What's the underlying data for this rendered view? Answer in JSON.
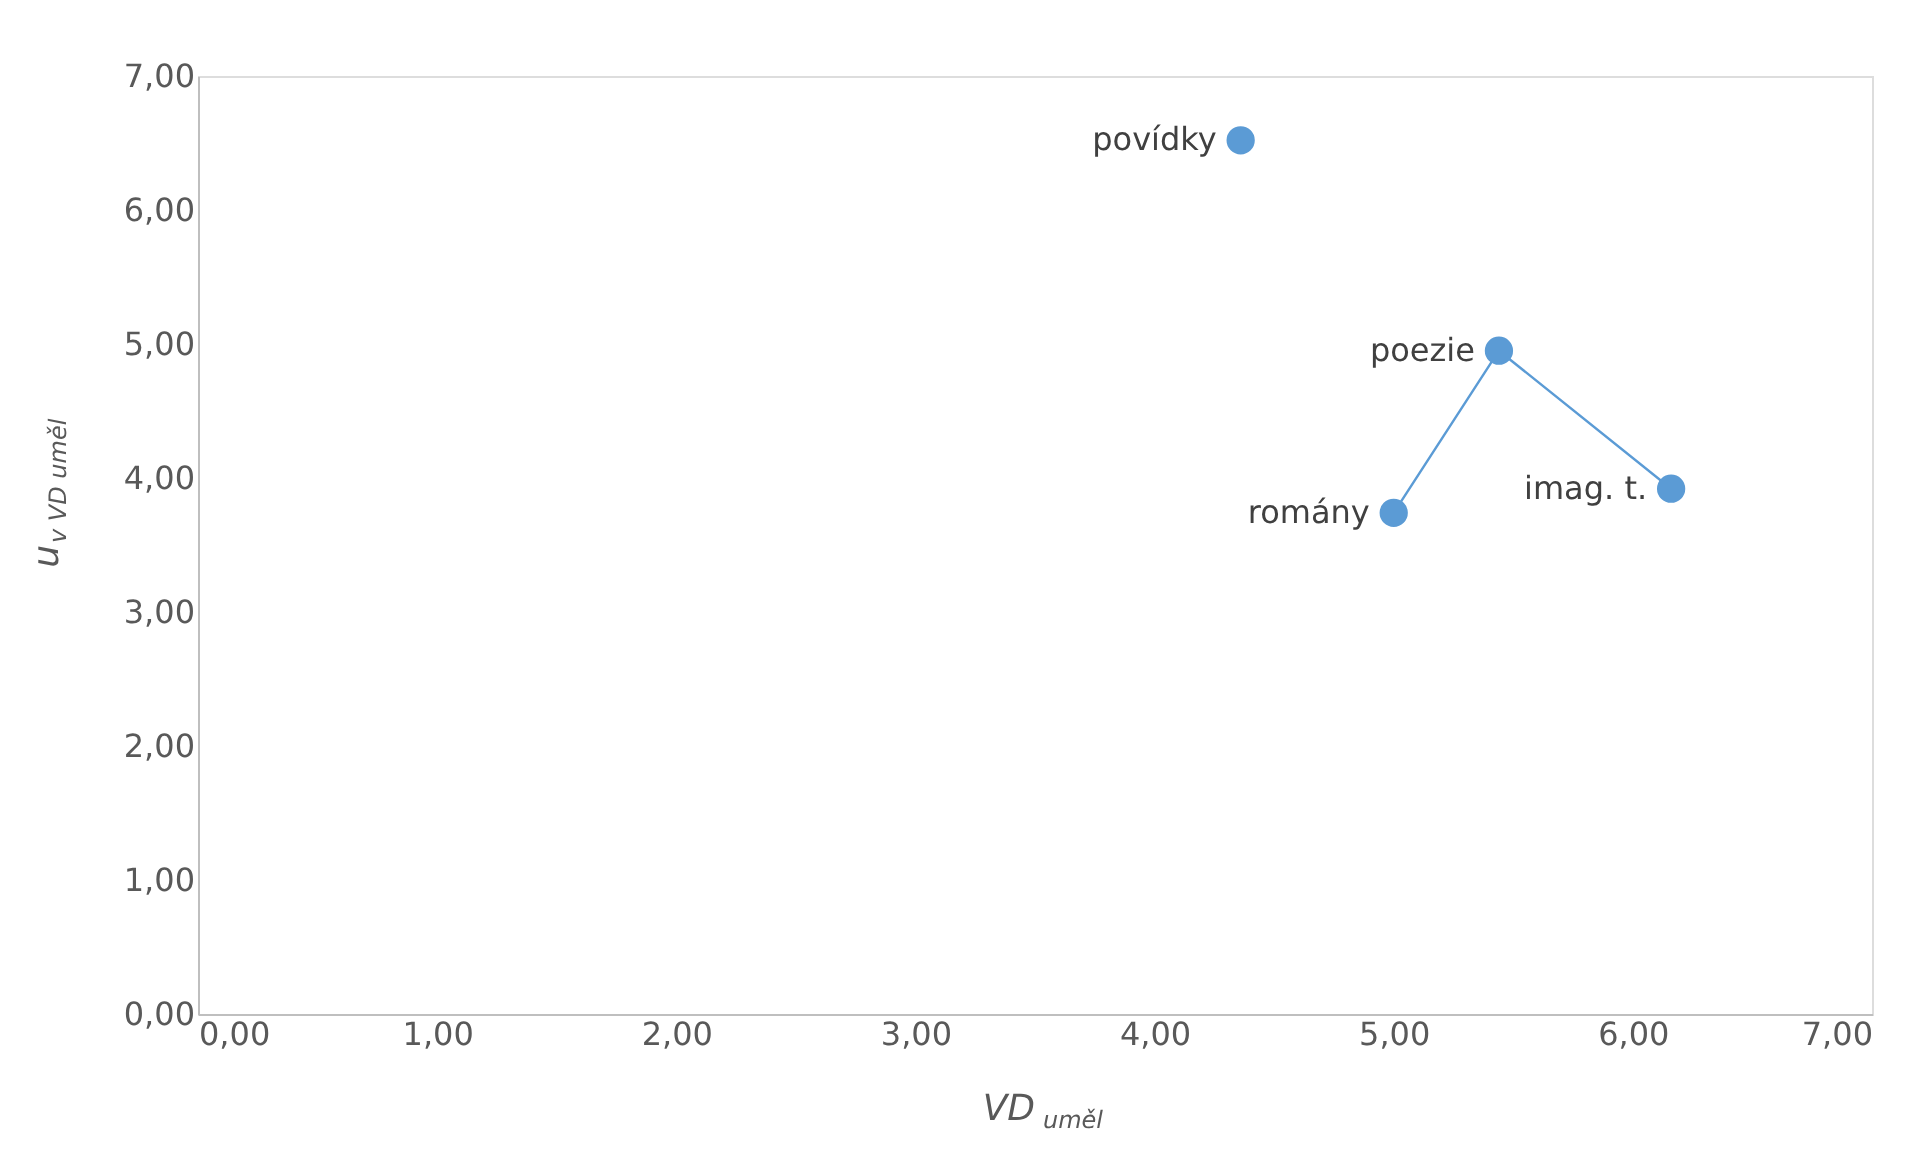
{
  "chart_data": {
    "type": "scatter",
    "xlabel": "VD $_{uměl}$",
    "ylabel": "u$_{v VD uměl}$",
    "series": [
      {
        "type": "scatter",
        "color": "#5b9bd5",
        "x": [
          4.36
        ],
        "values": [
          6.52
        ]
      },
      {
        "type": "line",
        "color": "#5b9bd5",
        "marker": "circle",
        "x": [
          5.0,
          5.44,
          6.16
        ],
        "values": [
          3.74,
          4.95,
          3.92
        ]
      }
    ],
    "annotations": [
      {
        "text": "povídky",
        "x": 4.36,
        "y": 6.52
      },
      {
        "text": "romány",
        "x": 5.0,
        "y": 3.74
      },
      {
        "text": "poezie",
        "x": 5.44,
        "y": 4.95
      },
      {
        "text": "imag. t.",
        "x": 6.16,
        "y": 3.92
      }
    ],
    "xlim": [
      0,
      7
    ],
    "ylim": [
      0,
      7
    ],
    "xticks": [
      {
        "value": 0,
        "label": "0,00"
      },
      {
        "value": 1,
        "label": "1,00"
      },
      {
        "value": 2,
        "label": "2,00"
      },
      {
        "value": 3,
        "label": "3,00"
      },
      {
        "value": 4,
        "label": "4,00"
      },
      {
        "value": 5,
        "label": "5,00"
      },
      {
        "value": 6,
        "label": "6,00"
      },
      {
        "value": 7,
        "label": "7,00"
      }
    ],
    "yticks": [
      {
        "value": 0,
        "label": "0,00"
      },
      {
        "value": 1,
        "label": "1,00"
      },
      {
        "value": 2,
        "label": "2,00"
      },
      {
        "value": 3,
        "label": "3,00"
      },
      {
        "value": 4,
        "label": "4,00"
      },
      {
        "value": 5,
        "label": "5,00"
      },
      {
        "value": 6,
        "label": "6,00"
      },
      {
        "value": 7,
        "label": "7,00"
      }
    ],
    "grid": false
  }
}
